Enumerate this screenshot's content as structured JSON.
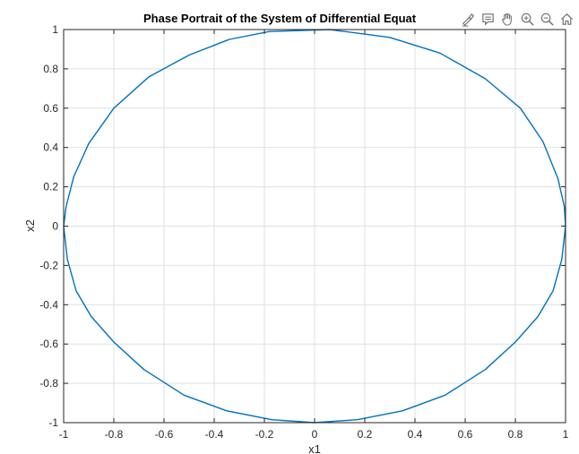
{
  "window": {
    "toolbar": [
      {
        "icon": "brush-icon",
        "name": "brush-button"
      },
      {
        "icon": "data-tips-icon",
        "name": "data-tips-button"
      },
      {
        "icon": "pan-hand-icon",
        "name": "pan-button"
      },
      {
        "icon": "zoom-in-icon",
        "name": "zoom-in-button"
      },
      {
        "icon": "zoom-out-icon",
        "name": "zoom-out-button"
      },
      {
        "icon": "home-icon",
        "name": "restore-view-button"
      }
    ]
  },
  "chart_data": {
    "type": "line",
    "title": "Phase Portrait of the System of Differential Equat",
    "xlabel": "x1",
    "ylabel": "x2",
    "xlim": [
      -1,
      1
    ],
    "ylim": [
      -1,
      1
    ],
    "xticks": [
      -1,
      -0.8,
      -0.6,
      -0.4,
      -0.2,
      0,
      0.2,
      0.4,
      0.6,
      0.8,
      1
    ],
    "yticks": [
      -1,
      -0.8,
      -0.6,
      -0.4,
      -0.2,
      0,
      0.2,
      0.4,
      0.6,
      0.8,
      1
    ],
    "xtick_labels": [
      "-1",
      "-0.8",
      "-0.6",
      "-0.4",
      "-0.2",
      "0",
      "0.2",
      "0.4",
      "0.6",
      "0.8",
      "1"
    ],
    "ytick_labels": [
      "-1",
      "-0.8",
      "-0.6",
      "-0.4",
      "-0.2",
      "0",
      "0.2",
      "0.4",
      "0.6",
      "0.8",
      "1"
    ],
    "grid": true,
    "series": [
      {
        "color": "#0072BD",
        "x": [
          1.0,
          0.995,
          0.97,
          0.91,
          0.82,
          0.68,
          0.5,
          0.3,
          0.06,
          -0.18,
          -0.34,
          -0.5,
          -0.66,
          -0.8,
          -0.9,
          -0.96,
          -0.99,
          -1.0,
          -0.985,
          -0.95,
          -0.89,
          -0.8,
          -0.68,
          -0.52,
          -0.35,
          -0.17,
          0.0,
          0.17,
          0.35,
          0.52,
          0.68,
          0.8,
          0.89,
          0.95,
          0.985,
          1.0
        ],
        "y": [
          0.0,
          0.1,
          0.24,
          0.43,
          0.6,
          0.75,
          0.88,
          0.96,
          1.0,
          0.99,
          0.95,
          0.87,
          0.76,
          0.6,
          0.42,
          0.25,
          0.1,
          0.0,
          -0.17,
          -0.33,
          -0.46,
          -0.59,
          -0.73,
          -0.86,
          -0.94,
          -0.985,
          -1.0,
          -0.985,
          -0.94,
          -0.86,
          -0.73,
          -0.59,
          -0.46,
          -0.33,
          -0.17,
          0.0
        ]
      }
    ]
  }
}
